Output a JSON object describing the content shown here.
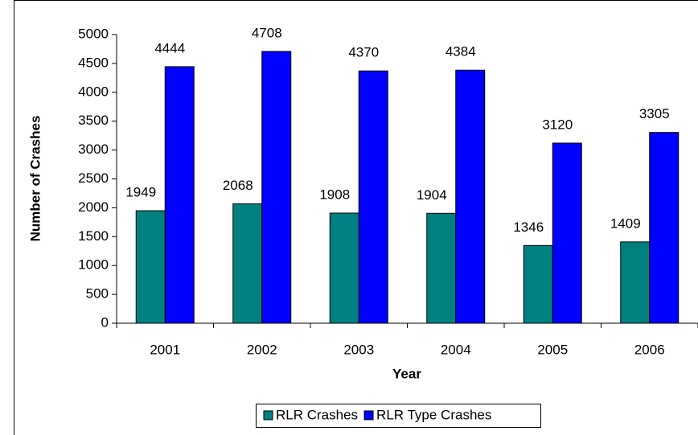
{
  "chart_data": {
    "type": "bar",
    "categories": [
      "2001",
      "2002",
      "2003",
      "2004",
      "2005",
      "2006"
    ],
    "series": [
      {
        "name": "RLR Crashes",
        "color": "#008080",
        "values": [
          1949,
          2068,
          1908,
          1904,
          1346,
          1409
        ]
      },
      {
        "name": "RLR Type Crashes",
        "color": "#0000ff",
        "values": [
          4444,
          4708,
          4370,
          4384,
          3120,
          3305
        ]
      }
    ],
    "x_label": "Year",
    "y_label": "Number of Crashes",
    "ylim": [
      0,
      5000
    ],
    "yticks": [
      0,
      500,
      1000,
      1500,
      2000,
      2500,
      3000,
      3500,
      4000,
      4500,
      5000
    ],
    "grid": false,
    "legend": "bottom"
  }
}
